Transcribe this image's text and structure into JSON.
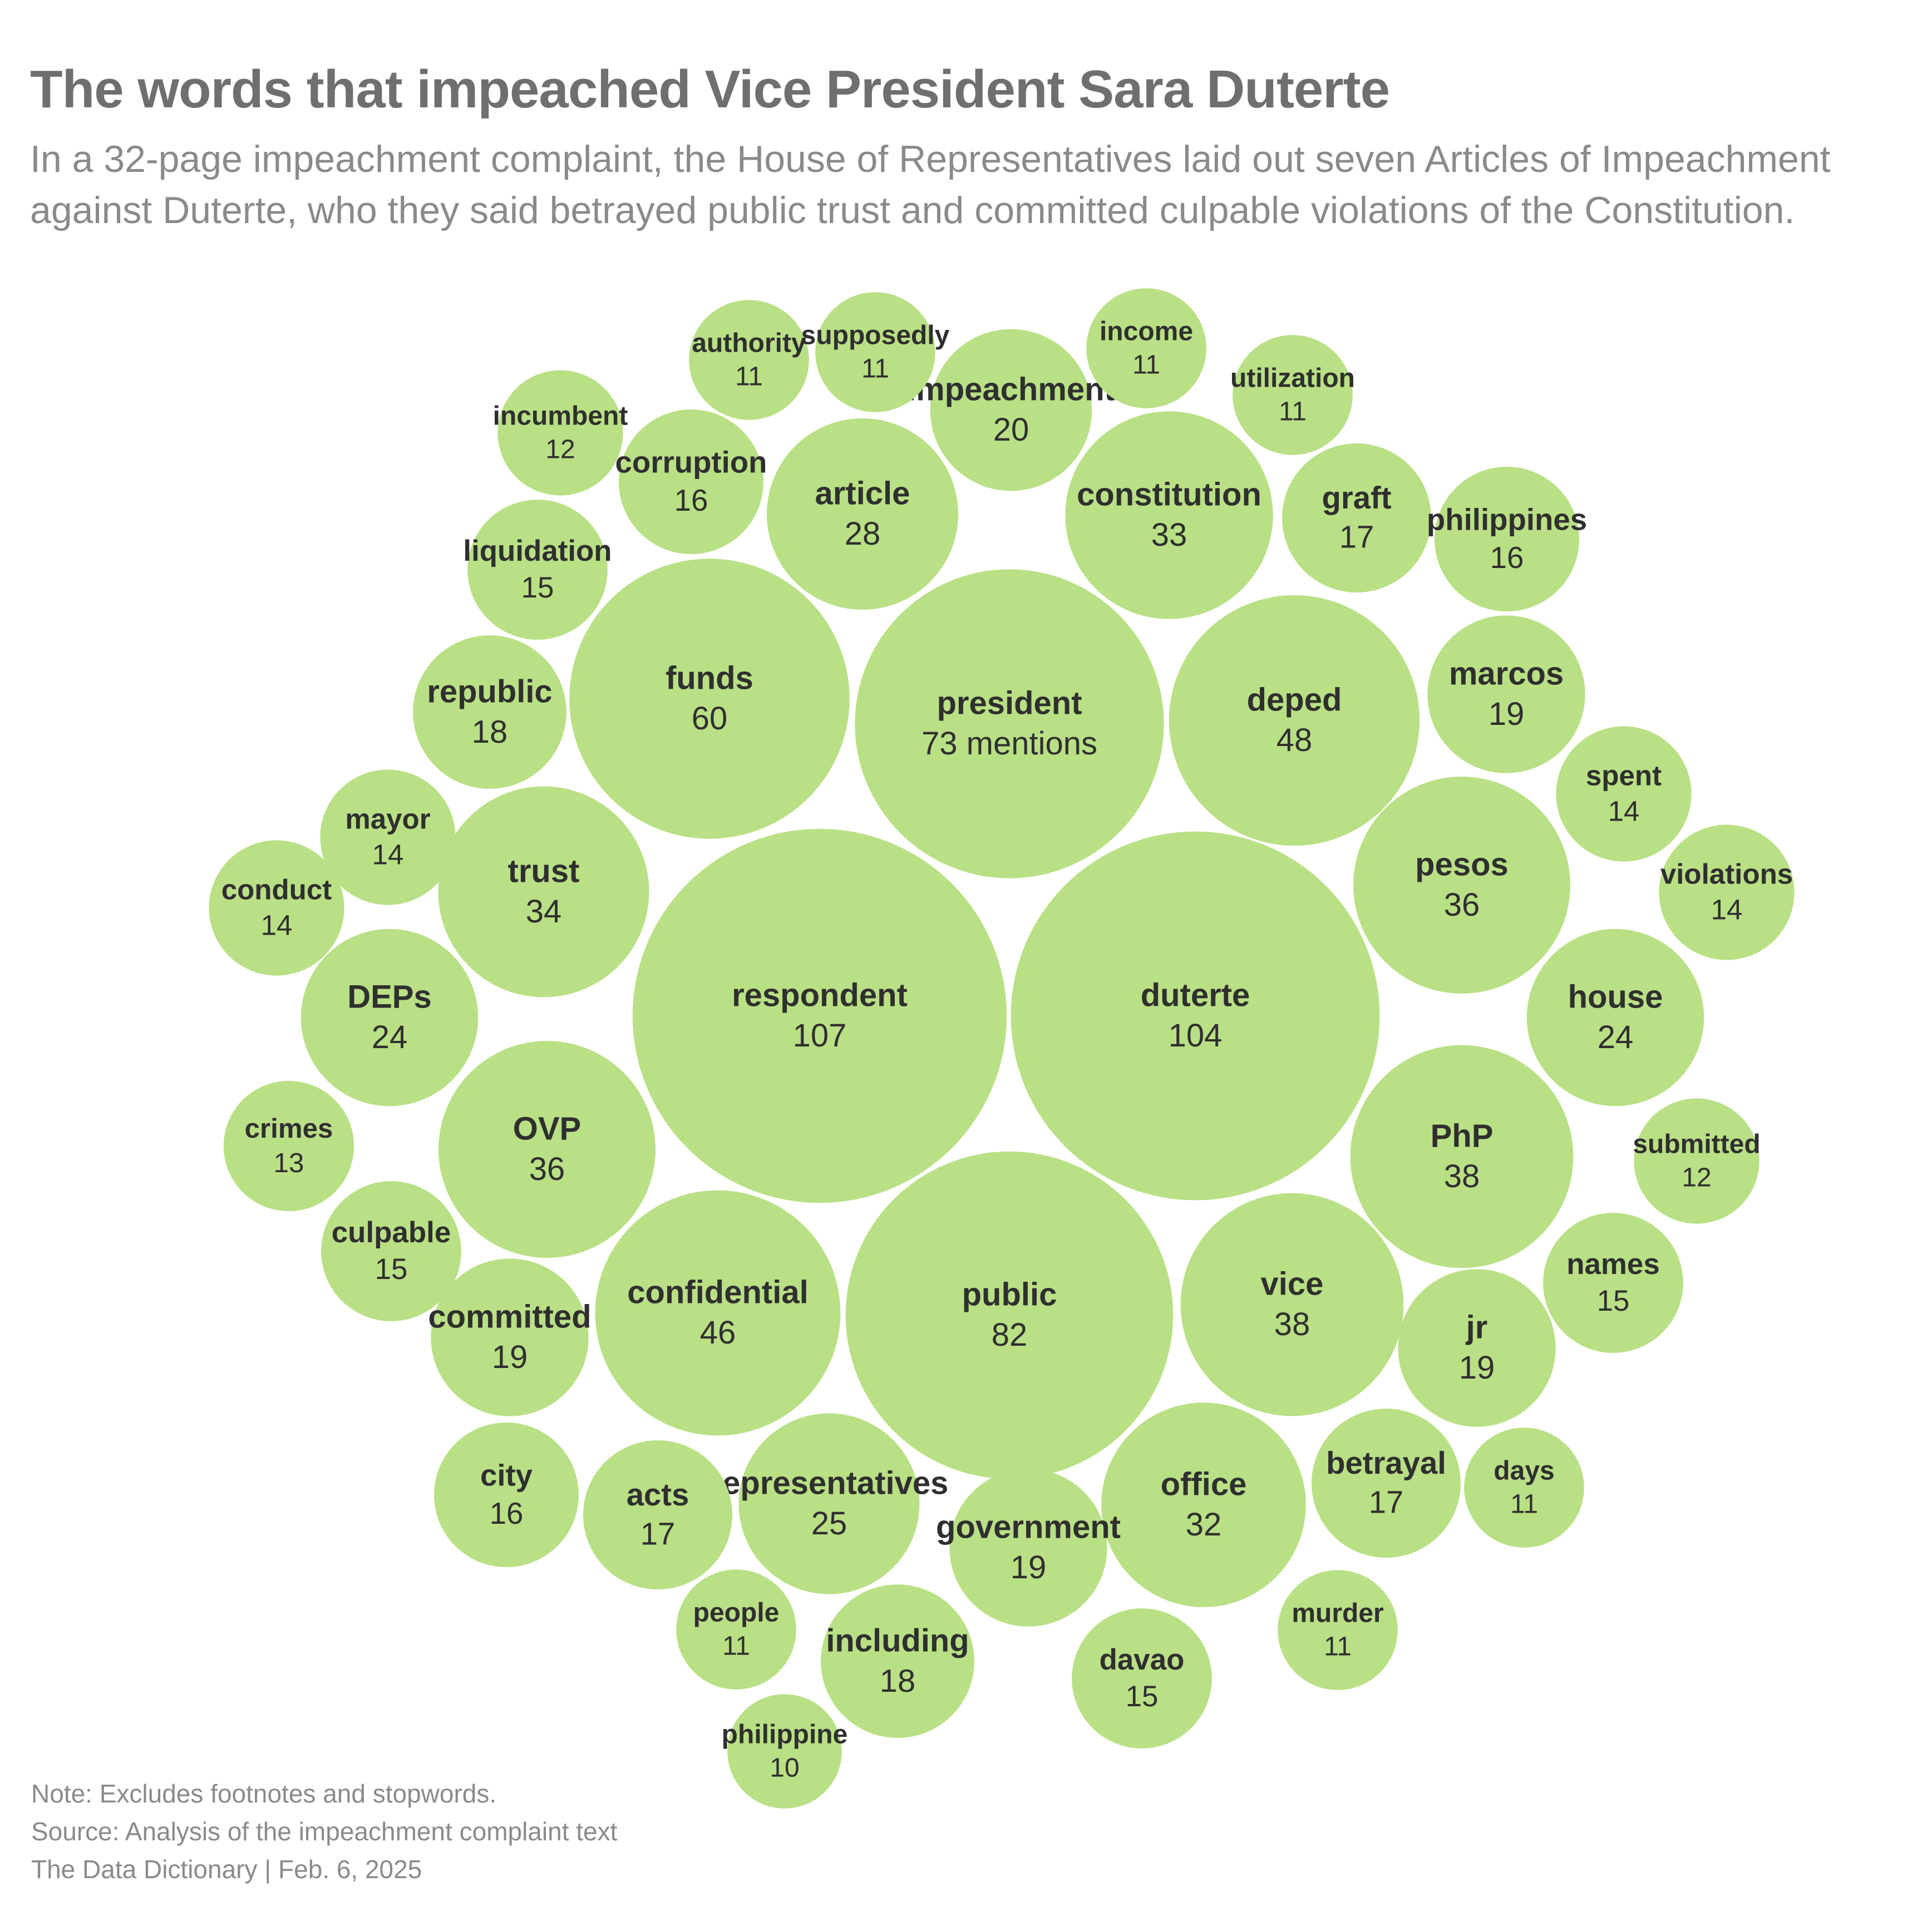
{
  "header": {
    "title": "The words that impeached Vice President Sara Duterte",
    "subtitle": "In a 32-page impeachment complaint, the House of Representatives laid out seven Articles of Impeachment against Duterte, who they said betrayed public trust and committed culpable violations of the Constitution."
  },
  "footer": {
    "note": "Note: Excludes footnotes and stopwords.",
    "source": "Source: Analysis of the impeachment complaint text",
    "credit": "The Data Dictionary | Feb. 6, 2025"
  },
  "colors": {
    "bubble": "#b9e085",
    "label": "#2f2f2f",
    "title": "#6f6f6f",
    "subtitle": "#8a8a8a"
  },
  "chart_data": {
    "type": "packed-bubble",
    "unit_suffix_on_largest_label": "mentions",
    "items": [
      {
        "word": "respondent",
        "count": 107
      },
      {
        "word": "duterte",
        "count": 104
      },
      {
        "word": "public",
        "count": 82
      },
      {
        "word": "president",
        "count": 73,
        "count_label": "73 mentions"
      },
      {
        "word": "funds",
        "count": 60
      },
      {
        "word": "deped",
        "count": 48
      },
      {
        "word": "confidential",
        "count": 46
      },
      {
        "word": "PhP",
        "count": 38
      },
      {
        "word": "vice",
        "count": 38
      },
      {
        "word": "pesos",
        "count": 36
      },
      {
        "word": "OVP",
        "count": 36
      },
      {
        "word": "trust",
        "count": 34
      },
      {
        "word": "constitution",
        "count": 33
      },
      {
        "word": "office",
        "count": 32
      },
      {
        "word": "article",
        "count": 28
      },
      {
        "word": "representatives",
        "count": 25
      },
      {
        "word": "DEPs",
        "count": 24
      },
      {
        "word": "house",
        "count": 24
      },
      {
        "word": "impeachment",
        "count": 20
      },
      {
        "word": "marcos",
        "count": 19
      },
      {
        "word": "jr",
        "count": 19
      },
      {
        "word": "committed",
        "count": 19
      },
      {
        "word": "government",
        "count": 19
      },
      {
        "word": "republic",
        "count": 18
      },
      {
        "word": "including",
        "count": 18
      },
      {
        "word": "graft",
        "count": 17
      },
      {
        "word": "betrayal",
        "count": 17
      },
      {
        "word": "acts",
        "count": 17
      },
      {
        "word": "corruption",
        "count": 16
      },
      {
        "word": "philippines",
        "count": 16
      },
      {
        "word": "city",
        "count": 16
      },
      {
        "word": "liquidation",
        "count": 15
      },
      {
        "word": "names",
        "count": 15
      },
      {
        "word": "culpable",
        "count": 15
      },
      {
        "word": "davao",
        "count": 15
      },
      {
        "word": "mayor",
        "count": 14
      },
      {
        "word": "conduct",
        "count": 14
      },
      {
        "word": "spent",
        "count": 14
      },
      {
        "word": "violations",
        "count": 14
      },
      {
        "word": "crimes",
        "count": 13
      },
      {
        "word": "incumbent",
        "count": 12
      },
      {
        "word": "submitted",
        "count": 12
      },
      {
        "word": "authority",
        "count": 11
      },
      {
        "word": "supposedly",
        "count": 11
      },
      {
        "word": "income",
        "count": 11
      },
      {
        "word": "utilization",
        "count": 11
      },
      {
        "word": "days",
        "count": 11
      },
      {
        "word": "murder",
        "count": 11
      },
      {
        "word": "people",
        "count": 11
      },
      {
        "word": "philippine",
        "count": 10
      }
    ]
  }
}
